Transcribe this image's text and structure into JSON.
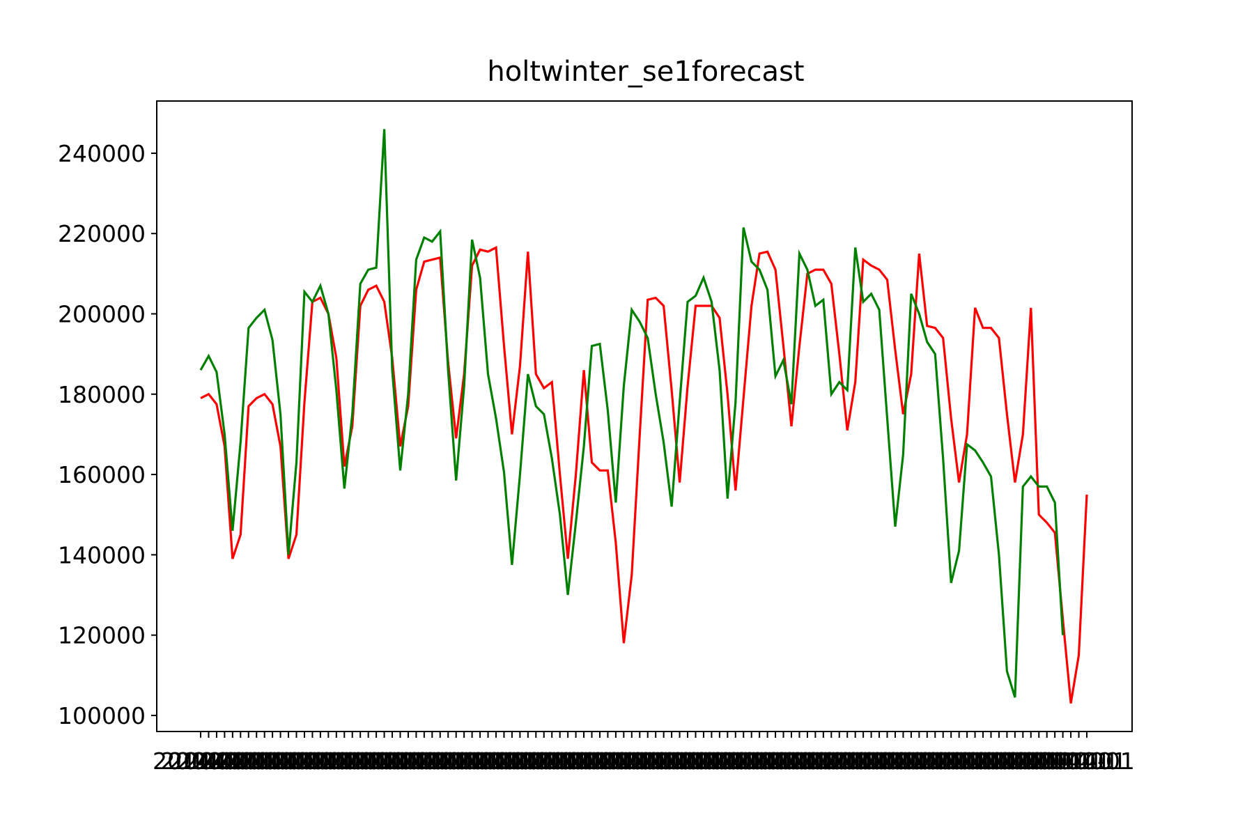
{
  "chart_data": {
    "type": "line",
    "title": "holtwinter_se1forecast",
    "xlabel": "",
    "ylabel": "",
    "ylim": [
      96000,
      253000
    ],
    "yticks": [
      100000,
      120000,
      140000,
      160000,
      180000,
      200000,
      220000,
      240000
    ],
    "ytick_labels": [
      "100000",
      "120000",
      "140000",
      "160000",
      "180000",
      "200000",
      "220000",
      "240000"
    ],
    "x_tick_count": 112,
    "x_tick_labels_note": "overlapping date labels",
    "grid": false,
    "series": [
      {
        "color": "#ff0000",
        "values": [
          179000,
          180000,
          177500,
          167000,
          139000,
          145000,
          177000,
          179000,
          180000,
          177500,
          167000,
          139000,
          145000,
          178000,
          203000,
          204000,
          200000,
          189000,
          162000,
          172000,
          202000,
          206000,
          207000,
          203000,
          189000,
          167000,
          177000,
          206000,
          213000,
          213500,
          214000,
          188000,
          169000,
          185000,
          212000,
          216000,
          215500,
          216500,
          192000,
          170000,
          187000,
          215500,
          185000,
          181500,
          183000,
          160000,
          139000,
          160000,
          186000,
          163000,
          161000,
          161000,
          143000,
          118000,
          135000,
          170000,
          203500,
          204000,
          202000,
          181000,
          158000,
          182000,
          202000,
          202000,
          202000,
          199000,
          180000,
          156000,
          179000,
          202000,
          215000,
          215500,
          211000,
          192000,
          172000,
          192000,
          210000,
          211000,
          211000,
          207500,
          190000,
          171000,
          183000,
          213500,
          212000,
          211000,
          208500,
          191000,
          175000,
          185000,
          215000,
          197000,
          196500,
          194000,
          174000,
          158000,
          170000,
          201500,
          196500,
          196500,
          194000,
          175000,
          158000,
          170000,
          201500,
          150000,
          148000,
          145500,
          124000,
          103000,
          115000,
          155000
        ]
      },
      {
        "color": "#008000",
        "values": [
          186000,
          189500,
          185500,
          170000,
          146000,
          168000,
          196500,
          199000,
          201000,
          193500,
          175000,
          140000,
          163000,
          205500,
          203000,
          207000,
          200000,
          181000,
          156500,
          175000,
          207500,
          211000,
          211500,
          246000,
          186000,
          161000,
          180000,
          213500,
          219000,
          218000,
          220500,
          186000,
          158500,
          182000,
          218500,
          209000,
          185000,
          174000,
          160500,
          137500,
          160000,
          185000,
          177000,
          175000,
          164000,
          150000,
          130000,
          148000,
          167000,
          192000,
          192500,
          176000,
          153000,
          182000,
          201000,
          198000,
          194000,
          180000,
          168000,
          152000,
          178000,
          203000,
          204500,
          209000,
          203000,
          186000,
          154000,
          178000,
          221500,
          213000,
          211000,
          206000,
          184500,
          188500,
          177500,
          215000,
          211000,
          202000,
          203500,
          180000,
          183000,
          181000,
          216500,
          203000,
          205000,
          201000,
          174000,
          147000,
          165000,
          205000,
          200000,
          193000,
          190000,
          164000,
          133000,
          141000,
          167500,
          166000,
          163000,
          159500,
          140000,
          111000,
          104500,
          157000,
          159500,
          157000,
          157000,
          153000,
          120000
        ]
      }
    ]
  }
}
